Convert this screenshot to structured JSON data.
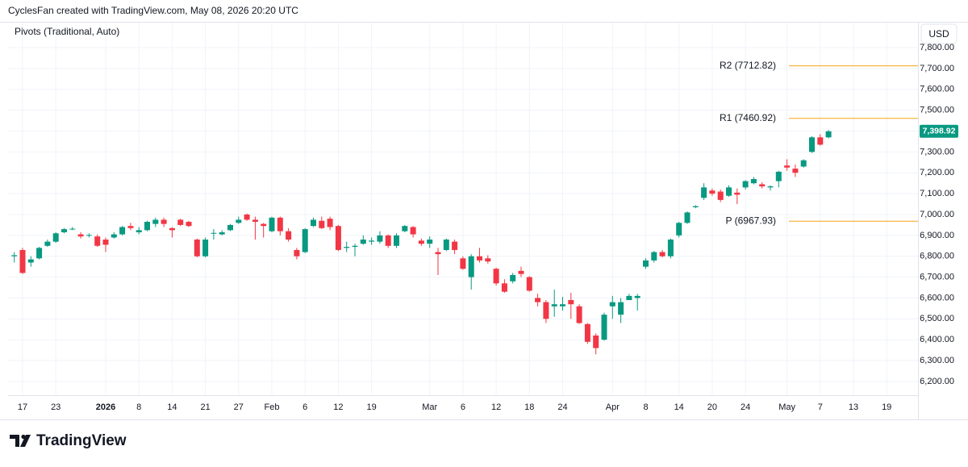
{
  "header": {
    "attribution": "CyclesFan created with TradingView.com, May 08, 2026 20:20 UTC",
    "indicator": "Pivots (Traditional, Auto)",
    "currency": "USD"
  },
  "footer": {
    "brand": "TradingView"
  },
  "chart_data": {
    "type": "candlestick",
    "up_color": "#089981",
    "down_color": "#f23645",
    "grid": true,
    "categories": [
      null,
      "17",
      null,
      null,
      null,
      "23",
      null,
      null,
      null,
      null,
      null,
      "2026",
      null,
      null,
      null,
      "8",
      null,
      null,
      null,
      "14",
      null,
      null,
      null,
      "21",
      null,
      null,
      null,
      "27",
      null,
      null,
      null,
      "Feb",
      null,
      null,
      null,
      "6",
      null,
      null,
      null,
      "12",
      null,
      null,
      null,
      "19",
      null,
      null,
      null,
      null,
      null,
      null,
      "Mar",
      null,
      null,
      null,
      "6",
      null,
      null,
      null,
      "12",
      null,
      null,
      null,
      "18",
      null,
      null,
      null,
      "24",
      null,
      null,
      null,
      null,
      null,
      "Apr",
      null,
      null,
      null,
      "8",
      null,
      null,
      null,
      "14",
      null,
      null,
      null,
      "20",
      null,
      null,
      null,
      "24",
      null,
      null,
      null,
      null,
      "May",
      null,
      null,
      null,
      "7",
      null,
      null,
      null,
      "13",
      null,
      null,
      null,
      "19"
    ],
    "open": [
      6800,
      6830,
      6770,
      6790,
      6850,
      6870,
      6915,
      6930,
      6905,
      6900,
      6895,
      6880,
      6890,
      6905,
      6945,
      6915,
      6925,
      6955,
      6975,
      6935,
      6975,
      6965,
      6880,
      6800,
      6910,
      6905,
      6925,
      6960,
      7000,
      6975,
      6955,
      6920,
      6985,
      6920,
      6830,
      6820,
      6945,
      6970,
      6980,
      6945,
      6840,
      6845,
      6860,
      6870,
      6870,
      6900,
      6850,
      6920,
      6940,
      6875,
      6860,
      6820,
      6830,
      6870,
      6790,
      6700,
      6800,
      6790,
      6740,
      6670,
      6680,
      6730,
      6700,
      6600,
      6580,
      6560,
      6560,
      6590,
      6560,
      6475,
      6420,
      6400,
      6560,
      6520,
      6590,
      6600,
      6750,
      6780,
      6820,
      6800,
      6900,
      6960,
      7035,
      7080,
      7115,
      7110,
      7090,
      7105,
      7130,
      7150,
      7145,
      7130,
      7160,
      7235,
      7220,
      7230,
      7300,
      7370,
      7370,
      null,
      null,
      null,
      null,
      null,
      null,
      null
    ],
    "high": [
      6820,
      6840,
      6800,
      6845,
      6880,
      6915,
      6935,
      6940,
      6915,
      6910,
      6905,
      6890,
      6915,
      6945,
      6960,
      6940,
      6970,
      6985,
      6985,
      6940,
      6980,
      6970,
      6885,
      6890,
      6930,
      6925,
      6955,
      6990,
      7005,
      6990,
      6960,
      6990,
      6990,
      6935,
      6840,
      6935,
      6985,
      6990,
      6990,
      6950,
      6870,
      6860,
      6900,
      6890,
      6920,
      6905,
      6910,
      6950,
      6945,
      6885,
      6895,
      6840,
      6885,
      6880,
      6800,
      6810,
      6840,
      6805,
      6745,
      6690,
      6720,
      6750,
      6705,
      6620,
      6590,
      6640,
      6605,
      6625,
      6570,
      6480,
      6430,
      6530,
      6610,
      6600,
      6620,
      6620,
      6790,
      6825,
      6830,
      6885,
      6965,
      7015,
      7045,
      7150,
      7125,
      7120,
      7140,
      7125,
      7165,
      7180,
      7155,
      7140,
      7210,
      7265,
      7240,
      7265,
      7375,
      7385,
      7405,
      null,
      null,
      null,
      null,
      null,
      null,
      null
    ],
    "low": [
      6770,
      6715,
      6750,
      6785,
      6845,
      6865,
      6910,
      6925,
      6885,
      6890,
      6845,
      6820,
      6885,
      6900,
      6925,
      6905,
      6920,
      6940,
      6940,
      6890,
      6945,
      6940,
      6795,
      6795,
      6880,
      6900,
      6920,
      6955,
      6970,
      6880,
      6890,
      6915,
      6900,
      6870,
      6785,
      6815,
      6940,
      6930,
      6925,
      6825,
      6820,
      6800,
      6855,
      6855,
      6860,
      6840,
      6840,
      6915,
      6890,
      6850,
      6840,
      6710,
      6825,
      6810,
      6735,
      6640,
      6770,
      6765,
      6660,
      6625,
      6670,
      6700,
      6630,
      6560,
      6480,
      6510,
      6540,
      6500,
      6475,
      6380,
      6330,
      6395,
      6500,
      6480,
      6590,
      6540,
      6740,
      6770,
      6795,
      6790,
      6890,
      6955,
      7030,
      7070,
      7090,
      7060,
      7085,
      7050,
      7120,
      7145,
      7125,
      7115,
      7130,
      7210,
      7180,
      7225,
      7295,
      7330,
      7365,
      null,
      null,
      null,
      null,
      null,
      null,
      null
    ],
    "close": [
      6805,
      6720,
      6785,
      6840,
      6870,
      6910,
      6930,
      6932,
      6895,
      6902,
      6850,
      6855,
      6905,
      6940,
      6935,
      6925,
      6965,
      6975,
      6955,
      6925,
      6950,
      6945,
      6800,
      6880,
      6912,
      6915,
      6950,
      6975,
      6975,
      6965,
      6945,
      6985,
      6920,
      6880,
      6800,
      6930,
      6975,
      6935,
      6940,
      6830,
      6845,
      6850,
      6880,
      6875,
      6900,
      6850,
      6900,
      6945,
      6905,
      6860,
      6880,
      6810,
      6880,
      6830,
      6740,
      6800,
      6780,
      6775,
      6670,
      6630,
      6710,
      6715,
      6635,
      6580,
      6500,
      6570,
      6570,
      6570,
      6480,
      6390,
      6360,
      6520,
      6580,
      6580,
      6610,
      6610,
      6780,
      6820,
      6800,
      6880,
      6960,
      7010,
      7040,
      7130,
      7100,
      7070,
      7130,
      7095,
      7160,
      7170,
      7135,
      7135,
      7205,
      7225,
      7200,
      7260,
      7370,
      7335,
      7398.92,
      null,
      null,
      null,
      null,
      null,
      null,
      null
    ],
    "ylim": [
      6134,
      7920
    ],
    "yticks": [
      {
        "value": 6200,
        "label": "6,200.00"
      },
      {
        "value": 6300,
        "label": "6,300.00"
      },
      {
        "value": 6400,
        "label": "6,400.00"
      },
      {
        "value": 6500,
        "label": "6,500.00"
      },
      {
        "value": 6600,
        "label": "6,600.00"
      },
      {
        "value": 6700,
        "label": "6,700.00"
      },
      {
        "value": 6800,
        "label": "6,800.00"
      },
      {
        "value": 6900,
        "label": "6,900.00"
      },
      {
        "value": 7000,
        "label": "7,000.00"
      },
      {
        "value": 7100,
        "label": "7,100.00"
      },
      {
        "value": 7200,
        "label": "7,200.00"
      },
      {
        "value": 7300,
        "label": "7,300.00"
      },
      {
        "value": 7400,
        "label": "7,400.00"
      },
      {
        "value": 7500,
        "label": "7,500.00"
      },
      {
        "value": 7600,
        "label": "7,600.00"
      },
      {
        "value": 7700,
        "label": "7,700.00"
      },
      {
        "value": 7800,
        "label": "7,800.00"
      }
    ],
    "last_price": {
      "value": 7398.92,
      "label": "7,398.92"
    },
    "pivot_color": "#f7a21b",
    "pivots": [
      {
        "label": "R2 (7712.82)",
        "value": 7712.82
      },
      {
        "label": "R1 (7460.92)",
        "value": 7460.92
      },
      {
        "label": "P (6967.93)",
        "value": 6967.93
      }
    ]
  }
}
